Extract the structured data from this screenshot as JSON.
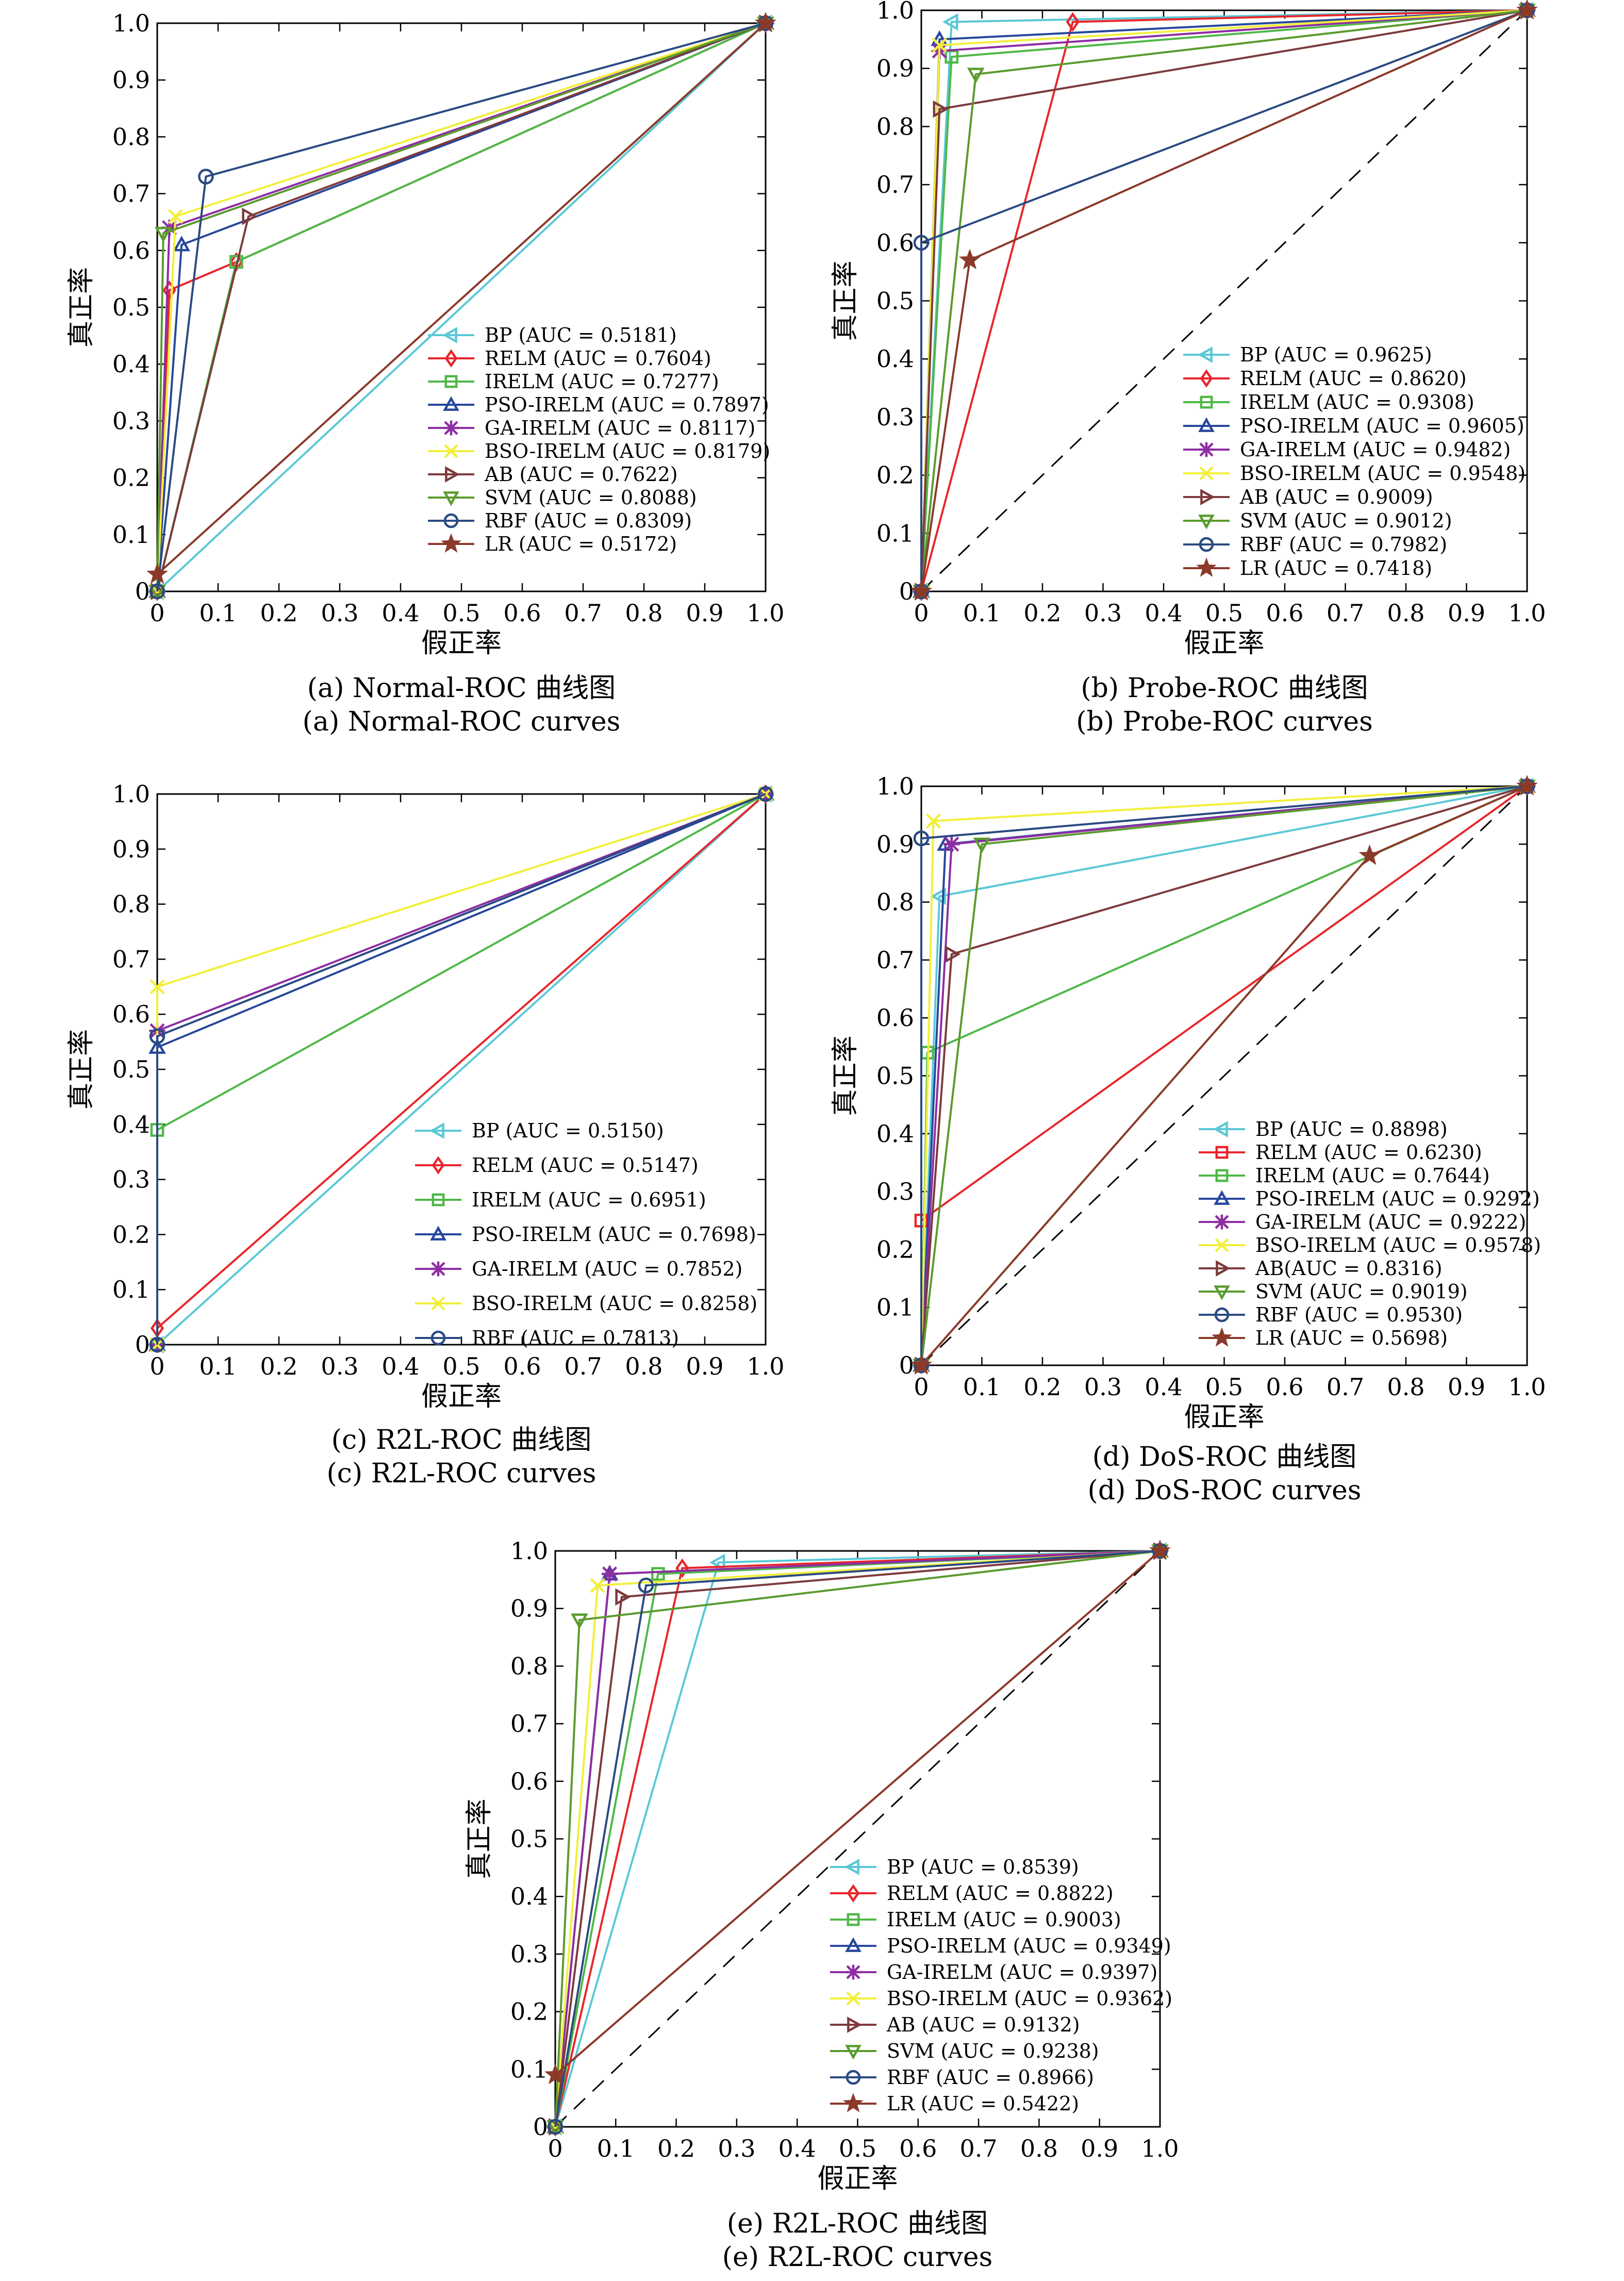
{
  "colors": {
    "BP": "#5bc8d6",
    "RELM": "#e8262b",
    "IRELM": "#4fb848",
    "PSO-IRELM": "#27479c",
    "GA-IRELM": "#8e2da3",
    "BSO-IRELM": "#f2ef3a",
    "AB": "#7d3a3d",
    "SVM": "#5a9b2e",
    "RBF": "#2a4a82",
    "LR": "#8b3a2a",
    "diagonal": "#000000",
    "frame": "#000000"
  },
  "markers": {
    "BP": "triangle-left",
    "RELM": "diamond",
    "IRELM": "square",
    "PSO-IRELM": "triangle-up",
    "GA-IRELM": "asterisk",
    "BSO-IRELM": "x-cross",
    "AB": "triangle-right",
    "SVM": "triangle-down",
    "RBF": "circle",
    "LR": "star"
  },
  "chart_data": [
    {
      "type": "line",
      "caption_cn": "(a) Normal-ROC 曲线图",
      "caption_en": "(a) Normal-ROC curves",
      "xlabel": "假正率",
      "ylabel": "真正率",
      "xlim": [
        0,
        1
      ],
      "ylim": [
        0,
        1
      ],
      "xticks": [
        "0",
        "0.1",
        "0.2",
        "0.3",
        "0.4",
        "0.5",
        "0.6",
        "0.7",
        "0.8",
        "0.9",
        "1.0"
      ],
      "yticks": [
        "0",
        "0.1",
        "0.2",
        "0.3",
        "0.4",
        "0.5",
        "0.6",
        "0.7",
        "0.8",
        "0.9",
        "1.0"
      ],
      "legend": "lower-right",
      "series": [
        {
          "name": "BP",
          "label": "BP (AUC = 0.5181)",
          "points": [
            [
              0,
              0
            ],
            [
              0,
              0
            ],
            [
              1,
              1
            ]
          ]
        },
        {
          "name": "RELM",
          "label": "RELM (AUC = 0.7604)",
          "points": [
            [
              0,
              0
            ],
            [
              0.02,
              0.53
            ],
            [
              0.13,
              0.58
            ],
            [
              1,
              1
            ]
          ]
        },
        {
          "name": "IRELM",
          "label": "IRELM (AUC = 0.7277)",
          "points": [
            [
              0,
              0
            ],
            [
              0.13,
              0.58
            ],
            [
              1,
              1
            ]
          ]
        },
        {
          "name": "PSO-IRELM",
          "label": "PSO-IRELM (AUC = 0.7897)",
          "points": [
            [
              0,
              0
            ],
            [
              0.04,
              0.61
            ],
            [
              1,
              1
            ]
          ]
        },
        {
          "name": "GA-IRELM",
          "label": "GA-IRELM (AUC = 0.8117)",
          "points": [
            [
              0,
              0
            ],
            [
              0.02,
              0.64
            ],
            [
              1,
              1
            ]
          ]
        },
        {
          "name": "BSO-IRELM",
          "label": "BSO-IRELM (AUC = 0.8179)",
          "points": [
            [
              0,
              0
            ],
            [
              0.03,
              0.66
            ],
            [
              1,
              1
            ]
          ]
        },
        {
          "name": "AB",
          "label": "AB (AUC = 0.7622)",
          "points": [
            [
              0,
              0
            ],
            [
              0.15,
              0.66
            ],
            [
              1,
              1
            ]
          ]
        },
        {
          "name": "SVM",
          "label": "SVM (AUC = 0.8088)",
          "points": [
            [
              0,
              0
            ],
            [
              0.01,
              0.63
            ],
            [
              1,
              1
            ]
          ]
        },
        {
          "name": "RBF",
          "label": "RBF (AUC = 0.8309)",
          "points": [
            [
              0,
              0
            ],
            [
              0.08,
              0.73
            ],
            [
              1,
              1
            ]
          ]
        },
        {
          "name": "LR",
          "label": "LR (AUC = 0.5172)",
          "points": [
            [
              0,
              0.03
            ],
            [
              1,
              1
            ]
          ]
        }
      ]
    },
    {
      "type": "line",
      "caption_cn": "(b) Probe-ROC 曲线图",
      "caption_en": "(b) Probe-ROC curves",
      "xlabel": "假正率",
      "ylabel": "真正率",
      "xlim": [
        0,
        1
      ],
      "ylim": [
        0,
        1
      ],
      "xticks": [
        "0",
        "0.1",
        "0.2",
        "0.3",
        "0.4",
        "0.5",
        "0.6",
        "0.7",
        "0.8",
        "0.9",
        "1.0"
      ],
      "yticks": [
        "0",
        "0.1",
        "0.2",
        "0.3",
        "0.4",
        "0.5",
        "0.6",
        "0.7",
        "0.8",
        "0.9",
        "1.0"
      ],
      "legend": "lower-right",
      "series": [
        {
          "name": "BP",
          "label": "BP (AUC = 0.9625)",
          "points": [
            [
              0,
              0
            ],
            [
              0.05,
              0.98
            ],
            [
              1,
              1
            ]
          ]
        },
        {
          "name": "RELM",
          "label": "RELM (AUC = 0.8620)",
          "points": [
            [
              0,
              0
            ],
            [
              0.25,
              0.98
            ],
            [
              1,
              1
            ]
          ]
        },
        {
          "name": "IRELM",
          "label": "IRELM (AUC = 0.9308)",
          "points": [
            [
              0,
              0
            ],
            [
              0.05,
              0.92
            ],
            [
              1,
              1
            ]
          ]
        },
        {
          "name": "PSO-IRELM",
          "label": "PSO-IRELM (AUC = 0.9605)",
          "points": [
            [
              0,
              0
            ],
            [
              0.03,
              0.95
            ],
            [
              1,
              1
            ]
          ]
        },
        {
          "name": "GA-IRELM",
          "label": "GA-IRELM (AUC = 0.9482)",
          "points": [
            [
              0,
              0
            ],
            [
              0.03,
              0.93
            ],
            [
              1,
              1
            ]
          ]
        },
        {
          "name": "BSO-IRELM",
          "label": "BSO-IRELM (AUC = 0.9548)",
          "points": [
            [
              0,
              0
            ],
            [
              0.03,
              0.94
            ],
            [
              1,
              1
            ]
          ]
        },
        {
          "name": "AB",
          "label": "AB (AUC = 0.9009)",
          "points": [
            [
              0,
              0
            ],
            [
              0.03,
              0.83
            ],
            [
              1,
              1
            ]
          ]
        },
        {
          "name": "SVM",
          "label": "SVM (AUC = 0.9012)",
          "points": [
            [
              0,
              0
            ],
            [
              0.09,
              0.89
            ],
            [
              1,
              1
            ]
          ]
        },
        {
          "name": "RBF",
          "label": "RBF (AUC = 0.7982)",
          "points": [
            [
              0,
              0
            ],
            [
              0,
              0.6
            ],
            [
              1,
              1
            ]
          ]
        },
        {
          "name": "LR",
          "label": "LR (AUC = 0.7418)",
          "points": [
            [
              0,
              0
            ],
            [
              0.08,
              0.57
            ],
            [
              1,
              1
            ]
          ]
        }
      ]
    },
    {
      "type": "line",
      "caption_cn": "(c) R2L-ROC 曲线图",
      "caption_en": "(c) R2L-ROC curves",
      "xlabel": "假正率",
      "ylabel": "真正率",
      "xlim": [
        0,
        1
      ],
      "ylim": [
        0,
        1
      ],
      "xticks": [
        "0",
        "0.1",
        "0.2",
        "0.3",
        "0.4",
        "0.5",
        "0.6",
        "0.7",
        "0.8",
        "0.9",
        "1.0"
      ],
      "yticks": [
        "0",
        "0.1",
        "0.2",
        "0.3",
        "0.4",
        "0.5",
        "0.6",
        "0.7",
        "0.8",
        "0.9",
        "1.0"
      ],
      "legend": "lower-right",
      "series": [
        {
          "name": "BP",
          "label": "BP (AUC = 0.5150)",
          "points": [
            [
              0,
              0
            ],
            [
              1,
              1
            ]
          ]
        },
        {
          "name": "RELM",
          "label": "RELM (AUC = 0.5147)",
          "points": [
            [
              0,
              0.03
            ],
            [
              1,
              1
            ]
          ]
        },
        {
          "name": "IRELM",
          "label": "IRELM (AUC = 0.6951)",
          "points": [
            [
              0,
              0
            ],
            [
              0,
              0.39
            ],
            [
              1,
              1
            ]
          ]
        },
        {
          "name": "PSO-IRELM",
          "label": "PSO-IRELM (AUC = 0.7698)",
          "points": [
            [
              0,
              0
            ],
            [
              0,
              0.54
            ],
            [
              1,
              1
            ]
          ]
        },
        {
          "name": "GA-IRELM",
          "label": "GA-IRELM (AUC = 0.7852)",
          "points": [
            [
              0,
              0
            ],
            [
              0,
              0.57
            ],
            [
              1,
              1
            ]
          ]
        },
        {
          "name": "BSO-IRELM",
          "label": "BSO-IRELM (AUC = 0.8258)",
          "points": [
            [
              0,
              0
            ],
            [
              0,
              0.65
            ],
            [
              1,
              1
            ]
          ]
        },
        {
          "name": "RBF",
          "label": "RBF (AUC = 0.7813)",
          "points": [
            [
              0,
              0
            ],
            [
              0,
              0.56
            ],
            [
              1,
              1
            ]
          ]
        }
      ]
    },
    {
      "type": "line",
      "caption_cn": "(d) DoS-ROC 曲线图",
      "caption_en": "(d) DoS-ROC curves",
      "xlabel": "假正率",
      "ylabel": "真正率",
      "xlim": [
        0,
        1
      ],
      "ylim": [
        0,
        1
      ],
      "xticks": [
        "0",
        "0.1",
        "0.2",
        "0.3",
        "0.4",
        "0.5",
        "0.6",
        "0.7",
        "0.8",
        "0.9",
        "1.0"
      ],
      "yticks": [
        "0",
        "0.1",
        "0.2",
        "0.3",
        "0.4",
        "0.5",
        "0.6",
        "0.7",
        "0.8",
        "0.9",
        "1.0"
      ],
      "legend": "lower-right",
      "series": [
        {
          "name": "BP",
          "label": "BP (AUC = 0.8898)",
          "points": [
            [
              0,
              0
            ],
            [
              0.03,
              0.81
            ],
            [
              1,
              1
            ]
          ]
        },
        {
          "name": "RELM",
          "label": "RELM (AUC = 0.6230)",
          "marker": "square",
          "points": [
            [
              0,
              0
            ],
            [
              0,
              0.25
            ],
            [
              1,
              1
            ]
          ]
        },
        {
          "name": "IRELM",
          "label": "IRELM (AUC = 0.7644)",
          "points": [
            [
              0,
              0
            ],
            [
              0.01,
              0.54
            ],
            [
              1,
              1
            ]
          ]
        },
        {
          "name": "PSO-IRELM",
          "label": "PSO-IRELM (AUC = 0.9292)",
          "points": [
            [
              0,
              0
            ],
            [
              0.04,
              0.9
            ],
            [
              1,
              1
            ]
          ]
        },
        {
          "name": "GA-IRELM",
          "label": "GA-IRELM (AUC = 0.9222)",
          "points": [
            [
              0,
              0
            ],
            [
              0.05,
              0.9
            ],
            [
              1,
              1
            ]
          ]
        },
        {
          "name": "BSO-IRELM",
          "label": "BSO-IRELM (AUC = 0.9578)",
          "points": [
            [
              0,
              0
            ],
            [
              0.02,
              0.94
            ],
            [
              1,
              1
            ]
          ]
        },
        {
          "name": "AB",
          "label": "AB(AUC = 0.8316)",
          "points": [
            [
              0,
              0
            ],
            [
              0.05,
              0.71
            ],
            [
              1,
              1
            ]
          ]
        },
        {
          "name": "SVM",
          "label": "SVM (AUC = 0.9019)",
          "points": [
            [
              0,
              0
            ],
            [
              0.1,
              0.9
            ],
            [
              1,
              1
            ]
          ]
        },
        {
          "name": "RBF",
          "label": "RBF (AUC = 0.9530)",
          "points": [
            [
              0,
              0
            ],
            [
              0,
              0.91
            ],
            [
              1,
              1
            ]
          ]
        },
        {
          "name": "LR",
          "label": "LR (AUC = 0.5698)",
          "points": [
            [
              0,
              0
            ],
            [
              0.74,
              0.88
            ],
            [
              1,
              1
            ]
          ]
        }
      ]
    },
    {
      "type": "line",
      "caption_cn": "(e) R2L-ROC 曲线图",
      "caption_en": "(e) R2L-ROC curves",
      "xlabel": "假正率",
      "ylabel": "真正率",
      "xlim": [
        0,
        1
      ],
      "ylim": [
        0,
        1
      ],
      "xticks": [
        "0",
        "0.1",
        "0.2",
        "0.3",
        "0.4",
        "0.5",
        "0.6",
        "0.7",
        "0.8",
        "0.9",
        "1.0"
      ],
      "yticks": [
        "0",
        "0.1",
        "0.2",
        "0.3",
        "0.4",
        "0.5",
        "0.6",
        "0.7",
        "0.8",
        "0.9",
        "1.0"
      ],
      "legend": "lower-right",
      "series": [
        {
          "name": "BP",
          "label": "BP (AUC = 0.8539)",
          "points": [
            [
              0,
              0
            ],
            [
              0.27,
              0.98
            ],
            [
              1,
              1
            ]
          ]
        },
        {
          "name": "RELM",
          "label": "RELM (AUC = 0.8822)",
          "points": [
            [
              0,
              0
            ],
            [
              0.21,
              0.97
            ],
            [
              1,
              1
            ]
          ]
        },
        {
          "name": "IRELM",
          "label": "IRELM (AUC = 0.9003)",
          "points": [
            [
              0,
              0
            ],
            [
              0.17,
              0.96
            ],
            [
              1,
              1
            ]
          ]
        },
        {
          "name": "PSO-IRELM",
          "label": "PSO-IRELM (AUC = 0.9349)",
          "points": [
            [
              0,
              0
            ],
            [
              0.09,
              0.96
            ],
            [
              1,
              1
            ]
          ]
        },
        {
          "name": "GA-IRELM",
          "label": "GA-IRELM (AUC = 0.9397)",
          "points": [
            [
              0,
              0
            ],
            [
              0.09,
              0.96
            ],
            [
              1,
              1
            ]
          ]
        },
        {
          "name": "BSO-IRELM",
          "label": "BSO-IRELM (AUC = 0.9362)",
          "points": [
            [
              0,
              0
            ],
            [
              0.07,
              0.94
            ],
            [
              1,
              1
            ]
          ]
        },
        {
          "name": "AB",
          "label": "AB (AUC = 0.9132)",
          "points": [
            [
              0,
              0
            ],
            [
              0.11,
              0.92
            ],
            [
              1,
              1
            ]
          ]
        },
        {
          "name": "SVM",
          "label": "SVM (AUC = 0.9238)",
          "points": [
            [
              0,
              0
            ],
            [
              0.04,
              0.88
            ],
            [
              1,
              1
            ]
          ]
        },
        {
          "name": "RBF",
          "label": "RBF (AUC = 0.8966)",
          "points": [
            [
              0,
              0
            ],
            [
              0.15,
              0.94
            ],
            [
              1,
              1
            ]
          ]
        },
        {
          "name": "LR",
          "label": "LR (AUC = 0.5422)",
          "points": [
            [
              0,
              0.09
            ],
            [
              1,
              1
            ]
          ]
        }
      ]
    }
  ]
}
